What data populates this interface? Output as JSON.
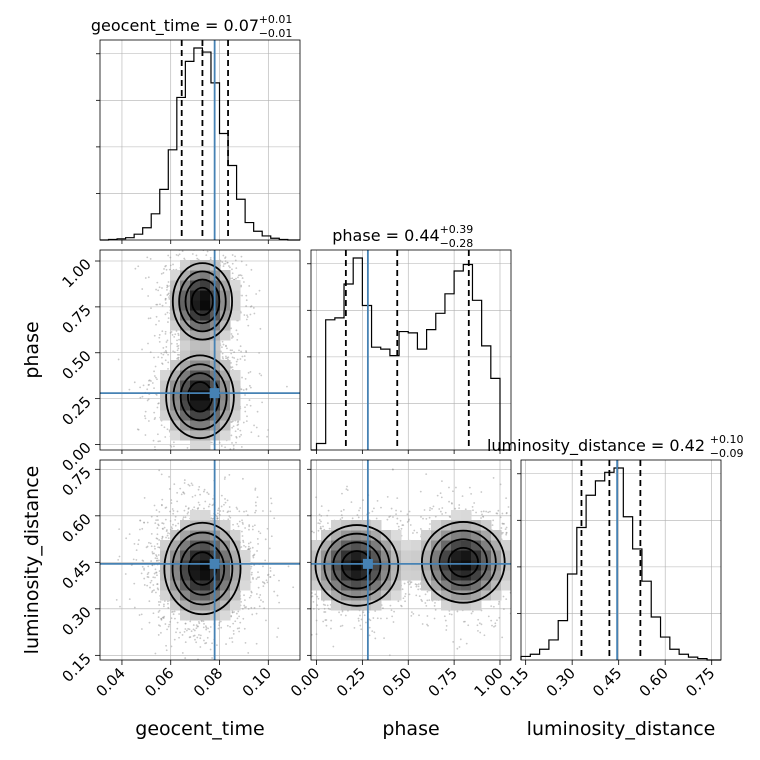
{
  "chart_data": {
    "type": "corner",
    "parameters": [
      "geocent_time",
      "phase",
      "luminosity_distance"
    ],
    "truths": {
      "geocent_time": 0.078,
      "phase": 0.28,
      "luminosity_distance": 0.445
    },
    "colors": {
      "truth": "#4682b4",
      "hist": "#000000",
      "grid": "#b0b0b0",
      "density": "#000000"
    },
    "grid": true,
    "axes": {
      "geocent_time": {
        "range": [
          0.031,
          0.113
        ],
        "ticks": [
          0.04,
          0.06,
          0.08,
          0.1
        ],
        "tick_labels": [
          "0.04",
          "0.06",
          "0.08",
          "0.10"
        ]
      },
      "phase": {
        "range": [
          -0.03,
          1.06
        ],
        "ticks": [
          0.0,
          0.25,
          0.5,
          0.75,
          1.0
        ],
        "tick_labels": [
          "0.00",
          "0.25",
          "0.50",
          "0.75",
          "1.00"
        ]
      },
      "luminosity_distance": {
        "range": [
          0.135,
          0.78
        ],
        "ticks": [
          0.15,
          0.3,
          0.45,
          0.6,
          0.75
        ],
        "tick_labels": [
          "0.15",
          "0.30",
          "0.45",
          "0.60",
          "0.75"
        ]
      }
    },
    "titles": [
      {
        "param": "geocent_time",
        "label": "geocent_time = 0.07",
        "plus": "+0.01",
        "minus": "−0.01"
      },
      {
        "param": "phase",
        "label": "phase = 0.44",
        "plus": "+0.39",
        "minus": "−0.28"
      },
      {
        "param": "luminosity_distance",
        "label": "luminosity_distance = 0.42",
        "plus": "+0.10",
        "minus": "−0.09"
      }
    ],
    "quantiles": {
      "geocent_time": [
        0.0645,
        0.073,
        0.0835
      ],
      "phase": [
        0.16,
        0.44,
        0.83
      ],
      "luminosity_distance": [
        0.33,
        0.42,
        0.52
      ]
    },
    "histograms": {
      "geocent_time": {
        "edges": [
          0.031,
          0.0345,
          0.038,
          0.0415,
          0.045,
          0.0485,
          0.052,
          0.0555,
          0.059,
          0.0625,
          0.066,
          0.0695,
          0.073,
          0.0765,
          0.08,
          0.0835,
          0.087,
          0.0905,
          0.094,
          0.0975,
          0.101,
          0.1045,
          0.108,
          0.113
        ],
        "counts": [
          0,
          1,
          2,
          4,
          10,
          21,
          45,
          87,
          155,
          245,
          307,
          330,
          323,
          270,
          183,
          128,
          70,
          30,
          15,
          7,
          3,
          1,
          0
        ]
      },
      "phase": {
        "edges": [
          -0.03,
          0.0,
          0.05,
          0.1,
          0.15,
          0.2,
          0.25,
          0.3,
          0.35,
          0.4,
          0.45,
          0.5,
          0.55,
          0.6,
          0.65,
          0.7,
          0.75,
          0.8,
          0.85,
          0.9,
          0.95,
          1.0,
          1.06
        ],
        "counts": [
          0,
          10,
          200,
          203,
          255,
          295,
          222,
          158,
          155,
          145,
          182,
          180,
          155,
          185,
          210,
          240,
          275,
          285,
          230,
          160,
          110,
          0
        ]
      },
      "luminosity_distance": {
        "edges": [
          0.135,
          0.165,
          0.195,
          0.225,
          0.255,
          0.285,
          0.315,
          0.345,
          0.375,
          0.405,
          0.435,
          0.465,
          0.495,
          0.525,
          0.555,
          0.585,
          0.615,
          0.645,
          0.675,
          0.705,
          0.735,
          0.78
        ],
        "counts": [
          5,
          8,
          15,
          28,
          55,
          120,
          185,
          230,
          250,
          262,
          268,
          200,
          155,
          110,
          60,
          32,
          15,
          8,
          4,
          2,
          0
        ]
      }
    },
    "pairs": [
      {
        "x": "geocent_time",
        "y": "phase",
        "modes": [
          {
            "mx": 0.073,
            "my": 0.78,
            "sx": 0.007,
            "sy": 0.12,
            "w": 0.5
          },
          {
            "mx": 0.072,
            "my": 0.26,
            "sx": 0.008,
            "sy": 0.13,
            "w": 0.5
          }
        ]
      },
      {
        "x": "geocent_time",
        "y": "luminosity_distance",
        "modes": [
          {
            "mx": 0.073,
            "my": 0.43,
            "sx": 0.009,
            "sy": 0.085,
            "w": 1.0
          }
        ]
      },
      {
        "x": "phase",
        "y": "luminosity_distance",
        "modes": [
          {
            "mx": 0.22,
            "my": 0.44,
            "sx": 0.13,
            "sy": 0.075,
            "w": 0.5
          },
          {
            "mx": 0.8,
            "my": 0.45,
            "sx": 0.13,
            "sy": 0.075,
            "w": 0.5
          }
        ]
      }
    ]
  }
}
